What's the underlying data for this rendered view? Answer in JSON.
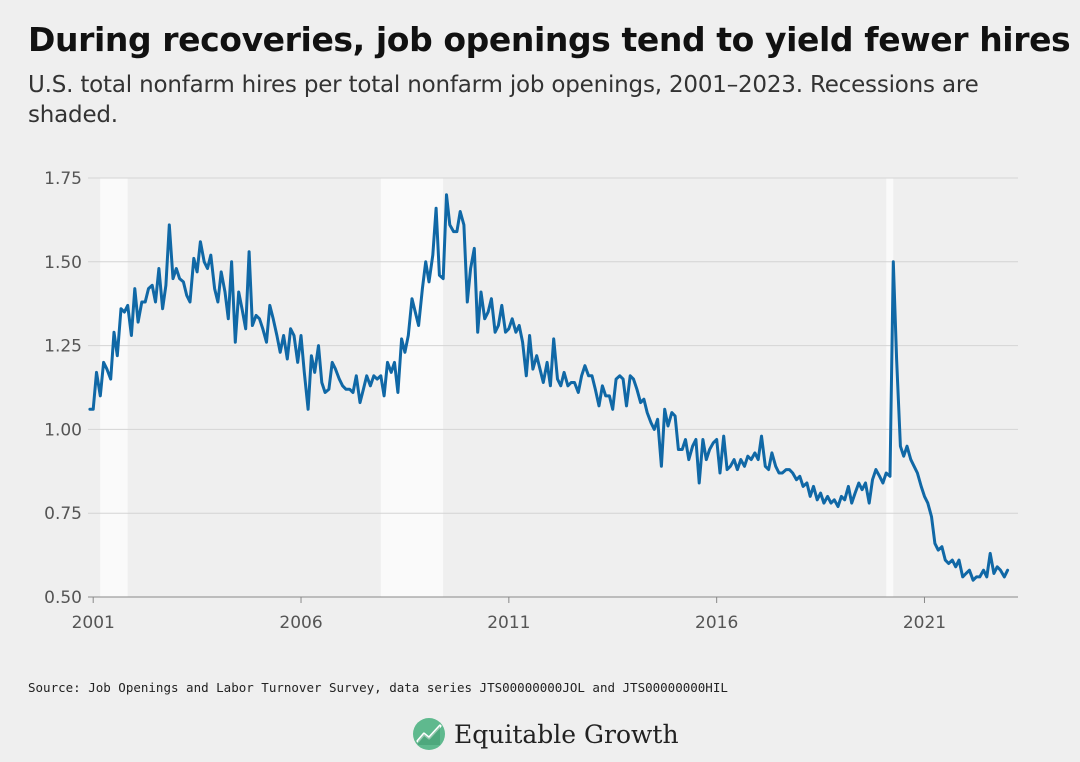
{
  "header": {
    "title": "During recoveries, job openings tend to yield fewer hires",
    "subtitle": "U.S. total nonfarm hires per total nonfarm job openings, 2001–2023. Recessions are shaded."
  },
  "footer": {
    "source": "Source: Job Openings and Labor Turnover Survey, data series JTS00000000JOL and JTS00000000HIL",
    "brand": "Equitable Growth",
    "brand_icon": "trend-chart-icon"
  },
  "colors": {
    "background": "#efefef",
    "line": "#1068a6",
    "recession": "#fafafa",
    "grid": "#d4d4d4",
    "logo": "#5fb98e"
  },
  "chart_data": {
    "type": "line",
    "title": "During recoveries, job openings tend to yield fewer hires",
    "xlabel": "",
    "ylabel": "",
    "xlim": [
      2000.875,
      2023.25
    ],
    "ylim": [
      0.5,
      1.75
    ],
    "yticks": [
      0.5,
      0.75,
      1.0,
      1.25,
      1.5,
      1.75
    ],
    "ytick_labels": [
      "0.50",
      "0.75",
      "1.00",
      "1.25",
      "1.50",
      "1.75"
    ],
    "xticks": [
      2001,
      2006,
      2011,
      2016,
      2021
    ],
    "xtick_labels": [
      "2001",
      "2006",
      "2011",
      "2016",
      "2021"
    ],
    "grid": true,
    "legend": "none",
    "recessions": [
      {
        "start": 2001.17,
        "end": 2001.83
      },
      {
        "start": 2007.92,
        "end": 2009.42
      },
      {
        "start": 2020.08,
        "end": 2020.25
      }
    ],
    "series": [
      {
        "anchors": [
          [
            2000.92,
            1.06
          ],
          [
            2001.0,
            1.06
          ],
          [
            2001.08,
            1.17
          ],
          [
            2001.17,
            1.1
          ],
          [
            2001.25,
            1.2
          ],
          [
            2001.33,
            1.18
          ],
          [
            2001.42,
            1.15
          ],
          [
            2001.5,
            1.29
          ],
          [
            2001.58,
            1.22
          ],
          [
            2001.67,
            1.36
          ],
          [
            2001.75,
            1.35
          ],
          [
            2001.83,
            1.37
          ],
          [
            2001.92,
            1.28
          ],
          [
            2002.0,
            1.42
          ],
          [
            2002.08,
            1.32
          ],
          [
            2002.17,
            1.38
          ],
          [
            2002.25,
            1.38
          ],
          [
            2002.33,
            1.42
          ],
          [
            2002.42,
            1.43
          ],
          [
            2002.5,
            1.38
          ],
          [
            2002.58,
            1.48
          ],
          [
            2002.67,
            1.36
          ],
          [
            2002.75,
            1.43
          ],
          [
            2002.83,
            1.61
          ],
          [
            2002.92,
            1.45
          ],
          [
            2003.0,
            1.48
          ],
          [
            2003.08,
            1.45
          ],
          [
            2003.17,
            1.44
          ],
          [
            2003.25,
            1.4
          ],
          [
            2003.33,
            1.38
          ],
          [
            2003.42,
            1.51
          ],
          [
            2003.5,
            1.47
          ],
          [
            2003.58,
            1.56
          ],
          [
            2003.67,
            1.5
          ],
          [
            2003.75,
            1.48
          ],
          [
            2003.83,
            1.52
          ],
          [
            2003.92,
            1.42
          ],
          [
            2004.0,
            1.38
          ],
          [
            2004.08,
            1.47
          ],
          [
            2004.17,
            1.41
          ],
          [
            2004.25,
            1.33
          ],
          [
            2004.33,
            1.5
          ],
          [
            2004.42,
            1.26
          ],
          [
            2004.5,
            1.41
          ],
          [
            2004.58,
            1.36
          ],
          [
            2004.67,
            1.3
          ],
          [
            2004.75,
            1.53
          ],
          [
            2004.83,
            1.31
          ],
          [
            2004.92,
            1.34
          ],
          [
            2005.0,
            1.33
          ],
          [
            2005.08,
            1.3
          ],
          [
            2005.17,
            1.26
          ],
          [
            2005.25,
            1.37
          ],
          [
            2005.33,
            1.33
          ],
          [
            2005.42,
            1.28
          ],
          [
            2005.5,
            1.23
          ],
          [
            2005.58,
            1.28
          ],
          [
            2005.67,
            1.21
          ],
          [
            2005.75,
            1.3
          ],
          [
            2005.83,
            1.28
          ],
          [
            2005.92,
            1.2
          ],
          [
            2006.0,
            1.28
          ],
          [
            2006.08,
            1.17
          ],
          [
            2006.17,
            1.06
          ],
          [
            2006.25,
            1.22
          ],
          [
            2006.33,
            1.17
          ],
          [
            2006.42,
            1.25
          ],
          [
            2006.5,
            1.14
          ],
          [
            2006.58,
            1.11
          ],
          [
            2006.67,
            1.12
          ],
          [
            2006.75,
            1.2
          ],
          [
            2006.83,
            1.18
          ],
          [
            2006.92,
            1.15
          ],
          [
            2007.0,
            1.13
          ],
          [
            2007.08,
            1.12
          ],
          [
            2007.17,
            1.12
          ],
          [
            2007.25,
            1.11
          ],
          [
            2007.33,
            1.16
          ],
          [
            2007.42,
            1.08
          ],
          [
            2007.5,
            1.12
          ],
          [
            2007.58,
            1.16
          ],
          [
            2007.67,
            1.13
          ],
          [
            2007.75,
            1.16
          ],
          [
            2007.83,
            1.15
          ],
          [
            2007.92,
            1.16
          ],
          [
            2008.0,
            1.1
          ],
          [
            2008.08,
            1.2
          ],
          [
            2008.17,
            1.17
          ],
          [
            2008.25,
            1.2
          ],
          [
            2008.33,
            1.11
          ],
          [
            2008.42,
            1.27
          ],
          [
            2008.5,
            1.23
          ],
          [
            2008.58,
            1.28
          ],
          [
            2008.67,
            1.39
          ],
          [
            2008.75,
            1.35
          ],
          [
            2008.83,
            1.31
          ],
          [
            2008.92,
            1.42
          ],
          [
            2009.0,
            1.5
          ],
          [
            2009.08,
            1.44
          ],
          [
            2009.17,
            1.52
          ],
          [
            2009.25,
            1.66
          ],
          [
            2009.33,
            1.46
          ],
          [
            2009.42,
            1.45
          ],
          [
            2009.5,
            1.7
          ],
          [
            2009.58,
            1.61
          ],
          [
            2009.67,
            1.59
          ],
          [
            2009.75,
            1.59
          ],
          [
            2009.83,
            1.65
          ],
          [
            2009.92,
            1.61
          ],
          [
            2010.0,
            1.38
          ],
          [
            2010.08,
            1.48
          ],
          [
            2010.17,
            1.54
          ],
          [
            2010.25,
            1.29
          ],
          [
            2010.33,
            1.41
          ],
          [
            2010.42,
            1.33
          ],
          [
            2010.5,
            1.35
          ],
          [
            2010.58,
            1.39
          ],
          [
            2010.67,
            1.29
          ],
          [
            2010.75,
            1.31
          ],
          [
            2010.83,
            1.37
          ],
          [
            2010.92,
            1.29
          ],
          [
            2011.0,
            1.3
          ],
          [
            2011.08,
            1.33
          ],
          [
            2011.17,
            1.29
          ],
          [
            2011.25,
            1.31
          ],
          [
            2011.33,
            1.26
          ],
          [
            2011.42,
            1.16
          ],
          [
            2011.5,
            1.28
          ],
          [
            2011.58,
            1.18
          ],
          [
            2011.67,
            1.22
          ],
          [
            2011.75,
            1.18
          ],
          [
            2011.83,
            1.14
          ],
          [
            2011.92,
            1.2
          ],
          [
            2012.0,
            1.13
          ],
          [
            2012.08,
            1.27
          ],
          [
            2012.17,
            1.15
          ],
          [
            2012.25,
            1.13
          ],
          [
            2012.33,
            1.17
          ],
          [
            2012.42,
            1.13
          ],
          [
            2012.5,
            1.14
          ],
          [
            2012.58,
            1.14
          ],
          [
            2012.67,
            1.11
          ],
          [
            2012.75,
            1.16
          ],
          [
            2012.83,
            1.19
          ],
          [
            2012.92,
            1.16
          ],
          [
            2013.0,
            1.16
          ],
          [
            2013.08,
            1.12
          ],
          [
            2013.17,
            1.07
          ],
          [
            2013.25,
            1.13
          ],
          [
            2013.33,
            1.1
          ],
          [
            2013.42,
            1.1
          ],
          [
            2013.5,
            1.06
          ],
          [
            2013.58,
            1.15
          ],
          [
            2013.67,
            1.16
          ],
          [
            2013.75,
            1.15
          ],
          [
            2013.83,
            1.07
          ],
          [
            2013.92,
            1.16
          ],
          [
            2014.0,
            1.15
          ],
          [
            2014.08,
            1.12
          ],
          [
            2014.17,
            1.08
          ],
          [
            2014.25,
            1.09
          ],
          [
            2014.33,
            1.05
          ],
          [
            2014.42,
            1.02
          ],
          [
            2014.5,
            1.0
          ],
          [
            2014.58,
            1.03
          ],
          [
            2014.67,
            0.89
          ],
          [
            2014.75,
            1.06
          ],
          [
            2014.83,
            1.01
          ],
          [
            2014.92,
            1.05
          ],
          [
            2015.0,
            1.04
          ],
          [
            2015.08,
            0.94
          ],
          [
            2015.17,
            0.94
          ],
          [
            2015.25,
            0.97
          ],
          [
            2015.33,
            0.91
          ],
          [
            2015.42,
            0.95
          ],
          [
            2015.5,
            0.97
          ],
          [
            2015.58,
            0.84
          ],
          [
            2015.67,
            0.97
          ],
          [
            2015.75,
            0.91
          ],
          [
            2015.83,
            0.94
          ],
          [
            2015.92,
            0.96
          ],
          [
            2016.0,
            0.97
          ],
          [
            2016.08,
            0.87
          ],
          [
            2016.17,
            0.98
          ],
          [
            2016.25,
            0.88
          ],
          [
            2016.33,
            0.89
          ],
          [
            2016.42,
            0.91
          ],
          [
            2016.5,
            0.88
          ],
          [
            2016.58,
            0.91
          ],
          [
            2016.67,
            0.89
          ],
          [
            2016.75,
            0.92
          ],
          [
            2016.83,
            0.91
          ],
          [
            2016.92,
            0.93
          ],
          [
            2017.0,
            0.91
          ],
          [
            2017.08,
            0.98
          ],
          [
            2017.17,
            0.89
          ],
          [
            2017.25,
            0.88
          ],
          [
            2017.33,
            0.93
          ],
          [
            2017.42,
            0.89
          ],
          [
            2017.5,
            0.87
          ],
          [
            2017.58,
            0.87
          ],
          [
            2017.67,
            0.88
          ],
          [
            2017.75,
            0.88
          ],
          [
            2017.83,
            0.87
          ],
          [
            2017.92,
            0.85
          ],
          [
            2018.0,
            0.86
          ],
          [
            2018.08,
            0.83
          ],
          [
            2018.17,
            0.84
          ],
          [
            2018.25,
            0.8
          ],
          [
            2018.33,
            0.83
          ],
          [
            2018.42,
            0.79
          ],
          [
            2018.5,
            0.81
          ],
          [
            2018.58,
            0.78
          ],
          [
            2018.67,
            0.8
          ],
          [
            2018.75,
            0.78
          ],
          [
            2018.83,
            0.79
          ],
          [
            2018.92,
            0.77
          ],
          [
            2019.0,
            0.8
          ],
          [
            2019.08,
            0.79
          ],
          [
            2019.17,
            0.83
          ],
          [
            2019.25,
            0.78
          ],
          [
            2019.33,
            0.81
          ],
          [
            2019.42,
            0.84
          ],
          [
            2019.5,
            0.82
          ],
          [
            2019.58,
            0.84
          ],
          [
            2019.67,
            0.78
          ],
          [
            2019.75,
            0.85
          ],
          [
            2019.83,
            0.88
          ],
          [
            2019.92,
            0.86
          ],
          [
            2020.0,
            0.84
          ],
          [
            2020.08,
            0.87
          ],
          [
            2020.17,
            0.86
          ],
          [
            2020.25,
            1.5
          ],
          [
            2020.33,
            1.21
          ],
          [
            2020.42,
            0.95
          ],
          [
            2020.5,
            0.92
          ],
          [
            2020.58,
            0.95
          ],
          [
            2020.67,
            0.91
          ],
          [
            2020.75,
            0.89
          ],
          [
            2020.83,
            0.87
          ],
          [
            2020.92,
            0.83
          ],
          [
            2021.0,
            0.8
          ],
          [
            2021.08,
            0.78
          ],
          [
            2021.17,
            0.74
          ],
          [
            2021.25,
            0.66
          ],
          [
            2021.33,
            0.64
          ],
          [
            2021.42,
            0.65
          ],
          [
            2021.5,
            0.61
          ],
          [
            2021.58,
            0.6
          ],
          [
            2021.67,
            0.61
          ],
          [
            2021.75,
            0.59
          ],
          [
            2021.83,
            0.61
          ],
          [
            2021.92,
            0.56
          ],
          [
            2022.0,
            0.57
          ],
          [
            2022.08,
            0.58
          ],
          [
            2022.17,
            0.55
          ],
          [
            2022.25,
            0.56
          ],
          [
            2022.33,
            0.56
          ],
          [
            2022.42,
            0.58
          ],
          [
            2022.5,
            0.56
          ],
          [
            2022.58,
            0.63
          ],
          [
            2022.67,
            0.57
          ],
          [
            2022.75,
            0.59
          ],
          [
            2022.83,
            0.58
          ],
          [
            2022.92,
            0.56
          ],
          [
            2023.0,
            0.58
          ]
        ]
      }
    ]
  }
}
